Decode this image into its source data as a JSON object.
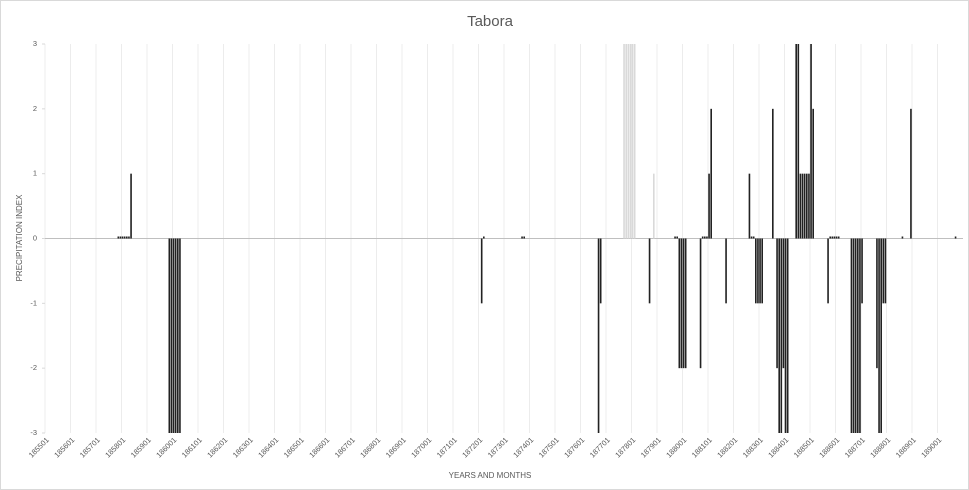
{
  "chart_data": {
    "type": "bar",
    "title": "Tabora",
    "x_label": "YEARS AND MONTHS",
    "y_label": "PRECIPITATION INDEX",
    "categories": [
      "185501",
      null,
      null,
      null,
      null,
      null,
      null,
      null,
      null,
      null,
      null,
      null,
      "185601",
      null,
      null,
      null,
      null,
      null,
      null,
      null,
      null,
      null,
      null,
      null,
      "185701",
      null,
      null,
      null,
      null,
      null,
      null,
      null,
      null,
      null,
      null,
      null,
      "185801",
      null,
      null,
      null,
      null,
      null,
      null,
      null,
      null,
      null,
      null,
      null,
      "185901",
      null,
      null,
      null,
      null,
      null,
      null,
      null,
      null,
      null,
      null,
      null,
      "186001",
      null,
      null,
      null,
      null,
      null,
      null,
      null,
      null,
      null,
      null,
      null,
      "186101",
      null,
      null,
      null,
      null,
      null,
      null,
      null,
      null,
      null,
      null,
      null,
      "186201",
      null,
      null,
      null,
      null,
      null,
      null,
      null,
      null,
      null,
      null,
      null,
      "186301",
      null,
      null,
      null,
      null,
      null,
      null,
      null,
      null,
      null,
      null,
      null,
      "186401",
      null,
      null,
      null,
      null,
      null,
      null,
      null,
      null,
      null,
      null,
      null,
      "186501",
      null,
      null,
      null,
      null,
      null,
      null,
      null,
      null,
      null,
      null,
      null,
      "186601",
      null,
      null,
      null,
      null,
      null,
      null,
      null,
      null,
      null,
      null,
      null,
      "186701",
      null,
      null,
      null,
      null,
      null,
      null,
      null,
      null,
      null,
      null,
      null,
      "186801",
      null,
      null,
      null,
      null,
      null,
      null,
      null,
      null,
      null,
      null,
      null,
      "186901",
      null,
      null,
      null,
      null,
      null,
      null,
      null,
      null,
      null,
      null,
      null,
      "187001",
      null,
      null,
      null,
      null,
      null,
      null,
      null,
      null,
      null,
      null,
      null,
      "187101",
      null,
      null,
      null,
      null,
      null,
      null,
      null,
      null,
      null,
      null,
      null,
      "187201",
      null,
      null,
      null,
      null,
      null,
      null,
      null,
      null,
      null,
      null,
      null,
      "187301",
      null,
      null,
      null,
      null,
      null,
      null,
      null,
      null,
      null,
      null,
      null,
      "187401",
      null,
      null,
      null,
      null,
      null,
      null,
      null,
      null,
      null,
      null,
      null,
      "187501",
      null,
      null,
      null,
      null,
      null,
      null,
      null,
      null,
      null,
      null,
      null,
      "187601",
      null,
      null,
      null,
      null,
      null,
      null,
      null,
      null,
      null,
      null,
      null,
      "187701",
      null,
      null,
      null,
      null,
      null,
      null,
      null,
      null,
      null,
      null,
      null,
      "187801",
      null,
      null,
      null,
      null,
      null,
      null,
      null,
      null,
      null,
      null,
      null,
      "187901",
      null,
      null,
      null,
      null,
      null,
      null,
      null,
      null,
      null,
      null,
      null,
      "188001",
      null,
      null,
      null,
      null,
      null,
      null,
      null,
      null,
      null,
      null,
      null,
      "188101",
      null,
      null,
      null,
      null,
      null,
      null,
      null,
      null,
      null,
      null,
      null,
      "188201",
      null,
      null,
      null,
      null,
      null,
      null,
      null,
      null,
      null,
      null,
      null,
      "188301",
      null,
      null,
      null,
      null,
      null,
      null,
      null,
      null,
      null,
      null,
      null,
      "188401",
      null,
      null,
      null,
      null,
      null,
      null,
      null,
      null,
      null,
      null,
      null,
      "188501",
      null,
      null,
      null,
      null,
      null,
      null,
      null,
      null,
      null,
      null,
      null,
      "188601",
      null,
      null,
      null,
      null,
      null,
      null,
      null,
      null,
      null,
      null,
      null,
      "188701",
      null,
      null,
      null,
      null,
      null,
      null,
      null,
      null,
      null,
      null,
      null,
      "188801",
      null,
      null,
      null,
      null,
      null,
      null,
      null,
      null,
      null,
      null,
      null,
      "188901",
      null,
      null,
      null,
      null,
      null,
      null,
      null,
      null,
      null,
      null,
      null,
      "189001",
      null,
      null,
      null,
      null,
      null,
      null,
      null,
      null,
      null,
      null,
      null
    ],
    "series": [
      {
        "color": "#222222",
        "values": [
          null,
          null,
          null,
          null,
          null,
          null,
          null,
          null,
          null,
          null,
          null,
          null,
          null,
          null,
          null,
          null,
          null,
          null,
          null,
          null,
          null,
          null,
          null,
          null,
          null,
          null,
          null,
          null,
          null,
          null,
          null,
          null,
          null,
          null,
          0,
          0,
          0,
          0,
          0,
          0,
          1,
          null,
          null,
          null,
          null,
          null,
          null,
          null,
          null,
          null,
          null,
          null,
          null,
          null,
          null,
          null,
          null,
          null,
          -3,
          -3,
          -3,
          -3,
          -3,
          -3,
          null,
          null,
          null,
          null,
          null,
          null,
          null,
          null,
          null,
          null,
          null,
          null,
          null,
          null,
          null,
          null,
          null,
          null,
          null,
          null,
          null,
          null,
          null,
          null,
          null,
          null,
          null,
          null,
          null,
          null,
          null,
          null,
          null,
          null,
          null,
          null,
          null,
          null,
          null,
          null,
          null,
          null,
          null,
          null,
          null,
          null,
          null,
          null,
          null,
          null,
          null,
          null,
          null,
          null,
          null,
          null,
          null,
          null,
          null,
          null,
          null,
          null,
          null,
          null,
          null,
          null,
          null,
          null,
          null,
          null,
          null,
          null,
          null,
          null,
          null,
          null,
          null,
          null,
          null,
          null,
          null,
          null,
          null,
          null,
          null,
          null,
          null,
          null,
          null,
          null,
          null,
          null,
          null,
          null,
          null,
          null,
          null,
          null,
          null,
          null,
          null,
          null,
          null,
          null,
          null,
          null,
          null,
          null,
          null,
          null,
          null,
          null,
          null,
          null,
          null,
          null,
          null,
          null,
          null,
          null,
          null,
          null,
          null,
          null,
          null,
          null,
          null,
          null,
          null,
          null,
          null,
          null,
          null,
          null,
          null,
          null,
          null,
          null,
          null,
          null,
          null,
          -1,
          0,
          null,
          null,
          null,
          null,
          null,
          null,
          null,
          null,
          null,
          null,
          null,
          null,
          null,
          null,
          null,
          null,
          null,
          0,
          0,
          null,
          null,
          null,
          null,
          null,
          null,
          null,
          null,
          null,
          null,
          null,
          null,
          null,
          null,
          null,
          null,
          null,
          null,
          null,
          null,
          null,
          null,
          null,
          null,
          null,
          null,
          null,
          null,
          null,
          null,
          null,
          null,
          null,
          null,
          -3,
          -1,
          null,
          null,
          null,
          null,
          null,
          null,
          null,
          null,
          null,
          null,
          null,
          null,
          null,
          null,
          null,
          null,
          null,
          null,
          null,
          null,
          null,
          null,
          -1,
          null,
          null,
          null,
          null,
          null,
          null,
          null,
          null,
          null,
          null,
          null,
          0,
          0,
          -2,
          -2,
          -2,
          -2,
          null,
          null,
          null,
          null,
          null,
          null,
          -2,
          0,
          0,
          0,
          1,
          2,
          null,
          null,
          null,
          null,
          null,
          null,
          -1,
          null,
          null,
          null,
          null,
          null,
          null,
          null,
          null,
          null,
          null,
          1,
          0,
          0,
          -1,
          -1,
          -1,
          -1,
          null,
          null,
          null,
          null,
          2,
          null,
          -2,
          -3,
          -3,
          -2,
          -3,
          -3,
          null,
          null,
          null,
          3,
          3,
          1,
          1,
          1,
          1,
          1,
          3,
          2,
          null,
          null,
          null,
          null,
          null,
          null,
          -1,
          0,
          0,
          0,
          0,
          0,
          null,
          null,
          null,
          null,
          null,
          -3,
          -3,
          -3,
          -3,
          -3,
          -1,
          null,
          null,
          null,
          null,
          null,
          null,
          -2,
          -3,
          -3,
          -1,
          -1,
          null,
          null,
          null,
          null,
          null,
          null,
          null,
          0,
          null,
          null,
          null,
          2,
          null,
          null,
          null,
          null,
          null,
          null,
          null,
          null,
          null,
          null,
          null,
          null,
          null,
          null,
          null,
          null,
          null,
          null,
          null,
          null,
          0,
          null,
          null,
          null
        ]
      },
      {
        "color": "#d9d9d9",
        "values": [
          null,
          null,
          null,
          null,
          null,
          null,
          null,
          null,
          null,
          null,
          null,
          null,
          null,
          null,
          null,
          null,
          null,
          null,
          null,
          null,
          null,
          null,
          null,
          null,
          null,
          null,
          null,
          null,
          null,
          null,
          null,
          null,
          null,
          null,
          null,
          null,
          null,
          null,
          null,
          null,
          null,
          null,
          null,
          null,
          null,
          null,
          null,
          null,
          null,
          null,
          null,
          null,
          null,
          null,
          null,
          null,
          null,
          null,
          null,
          null,
          null,
          null,
          null,
          null,
          null,
          null,
          null,
          null,
          null,
          null,
          null,
          null,
          null,
          null,
          null,
          null,
          null,
          null,
          null,
          null,
          null,
          null,
          null,
          null,
          null,
          null,
          null,
          null,
          null,
          null,
          null,
          null,
          null,
          null,
          null,
          null,
          null,
          null,
          null,
          null,
          null,
          null,
          null,
          null,
          null,
          null,
          null,
          null,
          null,
          null,
          null,
          null,
          null,
          null,
          null,
          null,
          null,
          null,
          null,
          null,
          null,
          null,
          null,
          null,
          null,
          null,
          null,
          null,
          null,
          null,
          null,
          null,
          null,
          null,
          null,
          null,
          null,
          null,
          null,
          null,
          null,
          null,
          null,
          null,
          null,
          null,
          null,
          null,
          null,
          null,
          null,
          null,
          null,
          null,
          null,
          null,
          null,
          null,
          null,
          null,
          null,
          null,
          null,
          null,
          null,
          null,
          null,
          null,
          null,
          null,
          null,
          null,
          null,
          null,
          null,
          null,
          null,
          null,
          null,
          null,
          null,
          null,
          null,
          null,
          null,
          null,
          null,
          null,
          null,
          null,
          null,
          null,
          null,
          null,
          null,
          null,
          null,
          null,
          null,
          null,
          null,
          null,
          null,
          null,
          null,
          null,
          null,
          null,
          null,
          null,
          null,
          null,
          null,
          null,
          null,
          null,
          null,
          null,
          null,
          null,
          null,
          null,
          null,
          null,
          null,
          null,
          null,
          null,
          null,
          null,
          null,
          null,
          null,
          null,
          null,
          null,
          null,
          null,
          null,
          null,
          null,
          null,
          null,
          null,
          null,
          null,
          null,
          null,
          null,
          null,
          null,
          null,
          null,
          null,
          null,
          null,
          null,
          null,
          null,
          null,
          null,
          null,
          null,
          null,
          null,
          null,
          null,
          null,
          null,
          null,
          null,
          null,
          3,
          3,
          3,
          3,
          3,
          3,
          null,
          null,
          null,
          null,
          null,
          null,
          null,
          null,
          1,
          null,
          null,
          null,
          null,
          null,
          null,
          null,
          null,
          null,
          null,
          null,
          null,
          null,
          null,
          null,
          null,
          null,
          null,
          null,
          null,
          null,
          null,
          null,
          null,
          null,
          null,
          null,
          null,
          null,
          null,
          null,
          null,
          null,
          null,
          null,
          null,
          null,
          null,
          null,
          null,
          null,
          null,
          null,
          null,
          null,
          null,
          null,
          null,
          null,
          null,
          null,
          null,
          null,
          null,
          null,
          null,
          null,
          null,
          null,
          null,
          null,
          null,
          null,
          null,
          null,
          null,
          null,
          null,
          null,
          null,
          null,
          null,
          null,
          null,
          null,
          null,
          null,
          null,
          null,
          null,
          null,
          null,
          null,
          null,
          null,
          null,
          null,
          null,
          null,
          null,
          null,
          null,
          null,
          null,
          null,
          null,
          null,
          null,
          null,
          null,
          null,
          null,
          null,
          null,
          null,
          null,
          null,
          null,
          null,
          null,
          null,
          null,
          null,
          null,
          null,
          null,
          null,
          null,
          null,
          null,
          null,
          null,
          null,
          null,
          null,
          null,
          null,
          null,
          null,
          null,
          null,
          null,
          null,
          null,
          null,
          null,
          null,
          null,
          null,
          null,
          null,
          null,
          null,
          null,
          null
        ]
      }
    ],
    "ylim": [
      -3,
      3
    ],
    "yticks": [
      -3,
      -2,
      -1,
      0,
      1,
      2,
      3
    ],
    "grid": "x"
  }
}
